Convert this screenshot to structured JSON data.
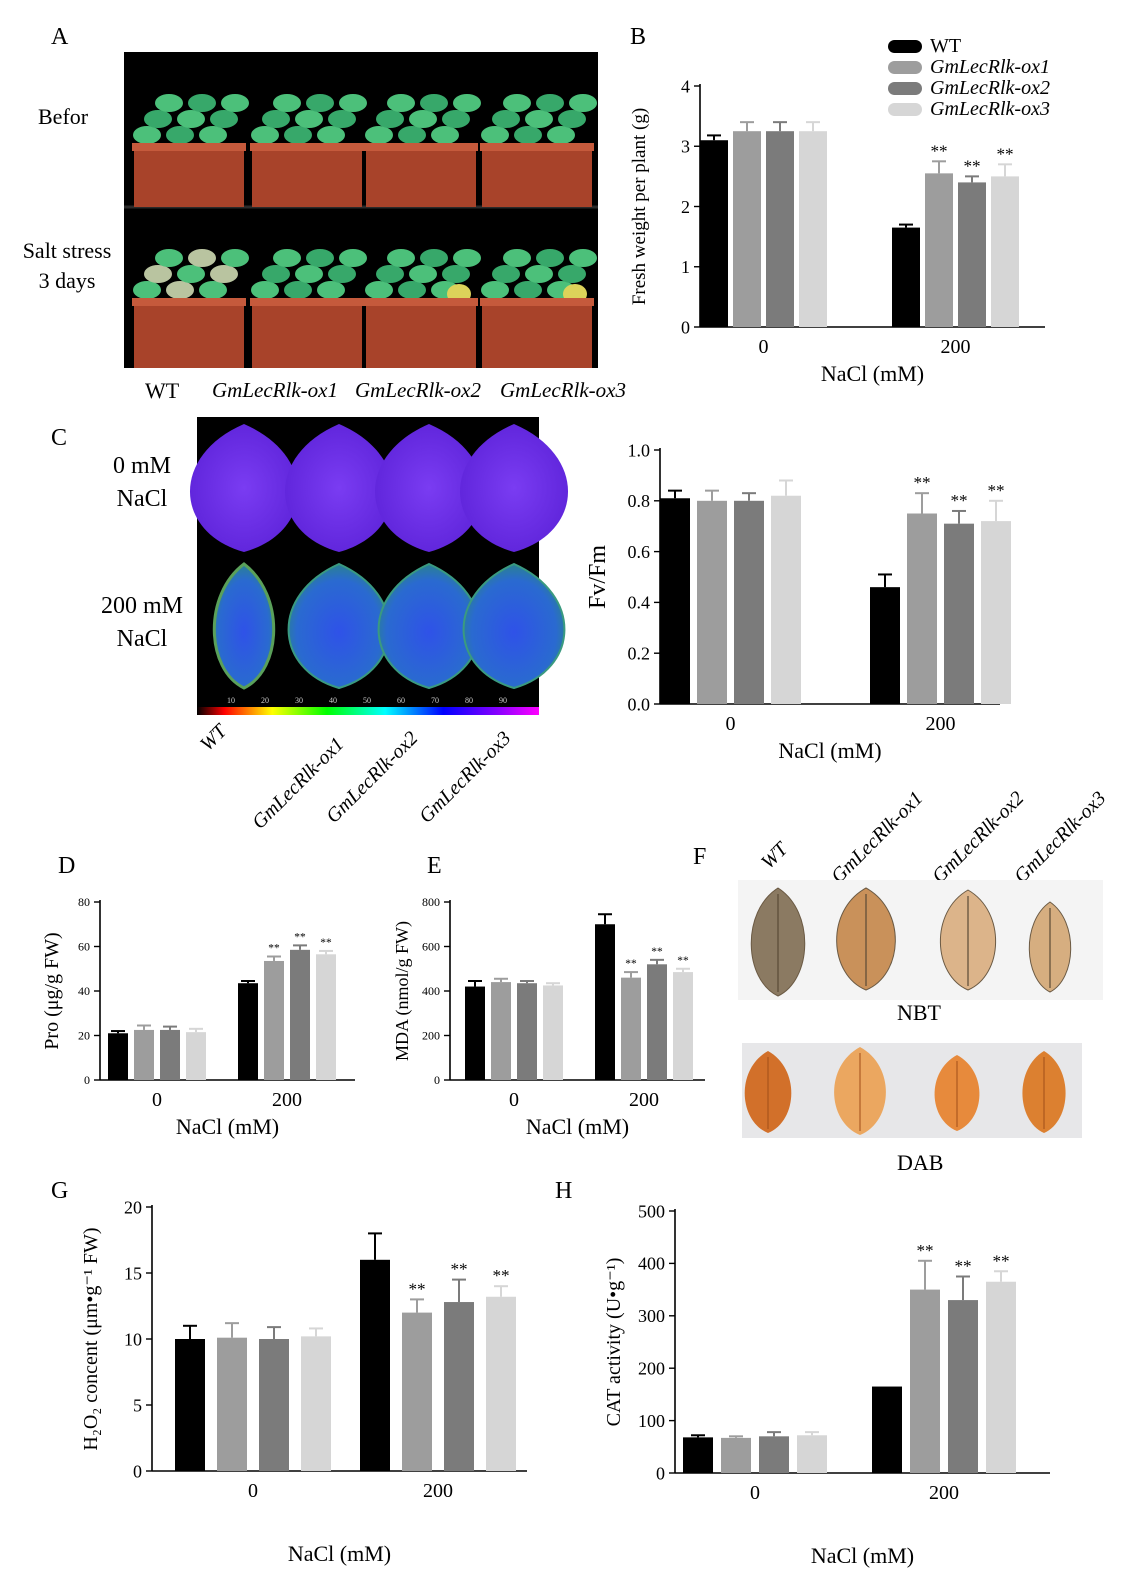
{
  "colors": {
    "WT": "#000000",
    "GmLecRlk-ox1": "#9d9d9d",
    "GmLecRlk-ox2": "#7b7b7b",
    "GmLecRlk-ox3": "#d6d6d6"
  },
  "legend": [
    "WT",
    "GmLecRlk-ox1",
    "GmLecRlk-ox2",
    "GmLecRlk-ox3"
  ],
  "panelA": {
    "letter": "A",
    "row_labels": [
      "Befor",
      "Salt stress\n3 days"
    ],
    "genotype_labels": [
      "WT",
      "GmLecRlk-ox1",
      "GmLecRlk-ox2",
      "GmLecRlk-ox3"
    ]
  },
  "panelC": {
    "letter": "C",
    "row_labels": [
      "0 mM\nNaCl",
      "200 mM\nNaCl"
    ],
    "genotype_labels": [
      "WT",
      "GmLecRlk-ox1",
      "GmLecRlk-ox2",
      "GmLecRlk-ox3"
    ],
    "scale_ticks": [
      "10",
      "20",
      "30",
      "40",
      "50",
      "60",
      "70",
      "80",
      "90"
    ]
  },
  "panelF": {
    "letter": "F",
    "genotype_labels": [
      "WT",
      "GmLecRlk-ox1",
      "GmLecRlk-ox2",
      "GmLecRlk-ox3"
    ],
    "stain_labels": [
      "NBT",
      "DAB"
    ]
  },
  "chart_data": [
    {
      "id": "B",
      "letter": "B",
      "type": "bar",
      "categories": [
        "0",
        "200"
      ],
      "xlabel": "NaCl (mM)",
      "ylabel": "Fresh weight per plant (g)",
      "ylim": [
        0,
        4
      ],
      "yticks": [
        0,
        1,
        2,
        3,
        4
      ],
      "series": [
        {
          "name": "WT",
          "values": [
            3.1,
            1.65
          ],
          "err": [
            0.08,
            0.05
          ],
          "sig": [
            "",
            ""
          ]
        },
        {
          "name": "GmLecRlk-ox1",
          "values": [
            3.25,
            2.55
          ],
          "err": [
            0.15,
            0.2
          ],
          "sig": [
            "",
            "**"
          ]
        },
        {
          "name": "GmLecRlk-ox2",
          "values": [
            3.25,
            2.4
          ],
          "err": [
            0.15,
            0.1
          ],
          "sig": [
            "",
            "**"
          ]
        },
        {
          "name": "GmLecRlk-ox3",
          "values": [
            3.25,
            2.5
          ],
          "err": [
            0.15,
            0.2
          ],
          "sig": [
            "",
            "**"
          ]
        }
      ]
    },
    {
      "id": "C",
      "letter": "",
      "type": "bar",
      "categories": [
        "0",
        "200"
      ],
      "xlabel": "NaCl (mM)",
      "ylabel": "Fv/Fm",
      "ylim": [
        0,
        1.0
      ],
      "yticks": [
        "0.0",
        "0.2",
        "0.4",
        "0.6",
        "0.8",
        "1.0"
      ],
      "series": [
        {
          "name": "WT",
          "values": [
            0.81,
            0.46
          ],
          "err": [
            0.03,
            0.05
          ],
          "sig": [
            "",
            ""
          ]
        },
        {
          "name": "GmLecRlk-ox1",
          "values": [
            0.8,
            0.75
          ],
          "err": [
            0.04,
            0.08
          ],
          "sig": [
            "",
            "**"
          ]
        },
        {
          "name": "GmLecRlk-ox2",
          "values": [
            0.8,
            0.71
          ],
          "err": [
            0.03,
            0.05
          ],
          "sig": [
            "",
            "**"
          ]
        },
        {
          "name": "GmLecRlk-ox3",
          "values": [
            0.82,
            0.72
          ],
          "err": [
            0.06,
            0.08
          ],
          "sig": [
            "",
            "**"
          ]
        }
      ]
    },
    {
      "id": "D",
      "letter": "D",
      "type": "bar",
      "categories": [
        "0",
        "200"
      ],
      "xlabel": "NaCl (mM)",
      "ylabel": "Pro (μg/g FW)",
      "ylim": [
        0,
        80
      ],
      "yticks": [
        0,
        20,
        40,
        60,
        80
      ],
      "series": [
        {
          "name": "WT",
          "values": [
            21,
            43.5
          ],
          "err": [
            1,
            1
          ],
          "sig": [
            "",
            ""
          ]
        },
        {
          "name": "GmLecRlk-ox1",
          "values": [
            22.5,
            53.5
          ],
          "err": [
            2,
            2
          ],
          "sig": [
            "",
            "**"
          ]
        },
        {
          "name": "GmLecRlk-ox2",
          "values": [
            22.5,
            58.5
          ],
          "err": [
            1.5,
            2
          ],
          "sig": [
            "",
            "**"
          ]
        },
        {
          "name": "GmLecRlk-ox3",
          "values": [
            21.5,
            56.5
          ],
          "err": [
            1.5,
            1.5
          ],
          "sig": [
            "",
            "**"
          ]
        }
      ]
    },
    {
      "id": "E",
      "letter": "E",
      "type": "bar",
      "categories": [
        "0",
        "200"
      ],
      "xlabel": "NaCl (mM)",
      "ylabel": "MDA (nmol/g FW)",
      "ylim": [
        0,
        800
      ],
      "yticks": [
        0,
        200,
        400,
        600,
        800
      ],
      "series": [
        {
          "name": "WT",
          "values": [
            420,
            700
          ],
          "err": [
            25,
            45
          ],
          "sig": [
            "",
            ""
          ]
        },
        {
          "name": "GmLecRlk-ox1",
          "values": [
            440,
            460
          ],
          "err": [
            15,
            25
          ],
          "sig": [
            "",
            "**"
          ]
        },
        {
          "name": "GmLecRlk-ox2",
          "values": [
            435,
            520
          ],
          "err": [
            10,
            20
          ],
          "sig": [
            "",
            "**"
          ]
        },
        {
          "name": "GmLecRlk-ox3",
          "values": [
            425,
            485
          ],
          "err": [
            10,
            15
          ],
          "sig": [
            "",
            "**"
          ]
        }
      ]
    },
    {
      "id": "G",
      "letter": "G",
      "type": "bar",
      "categories": [
        "0",
        "200"
      ],
      "xlabel": "NaCl (mM)",
      "ylabel": "H₂O₂ concent (μm•g⁻¹ FW)",
      "ylim": [
        0,
        20
      ],
      "yticks": [
        0,
        5,
        10,
        15,
        20
      ],
      "series": [
        {
          "name": "WT",
          "values": [
            10,
            16
          ],
          "err": [
            1,
            2
          ],
          "sig": [
            "",
            ""
          ]
        },
        {
          "name": "GmLecRlk-ox1",
          "values": [
            10.1,
            12
          ],
          "err": [
            1.1,
            1
          ],
          "sig": [
            "",
            "**"
          ]
        },
        {
          "name": "GmLecRlk-ox2",
          "values": [
            10,
            12.8
          ],
          "err": [
            0.9,
            1.7
          ],
          "sig": [
            "",
            "**"
          ]
        },
        {
          "name": "GmLecRlk-ox3",
          "values": [
            10.2,
            13.2
          ],
          "err": [
            0.6,
            0.8
          ],
          "sig": [
            "",
            "**"
          ]
        }
      ]
    },
    {
      "id": "H",
      "letter": "H",
      "type": "bar",
      "categories": [
        "0",
        "200"
      ],
      "xlabel": "NaCl (mM)",
      "ylabel": "CAT activity (U•g⁻¹)",
      "ylim": [
        0,
        500
      ],
      "yticks": [
        0,
        100,
        200,
        300,
        400,
        500
      ],
      "series": [
        {
          "name": "WT",
          "values": [
            68,
            165
          ],
          "err": [
            4,
            0
          ],
          "sig": [
            "",
            ""
          ]
        },
        {
          "name": "GmLecRlk-ox1",
          "values": [
            67,
            350
          ],
          "err": [
            3,
            55
          ],
          "sig": [
            "",
            "**"
          ]
        },
        {
          "name": "GmLecRlk-ox2",
          "values": [
            70,
            330
          ],
          "err": [
            8,
            45
          ],
          "sig": [
            "",
            "**"
          ]
        },
        {
          "name": "GmLecRlk-ox3",
          "values": [
            72,
            365
          ],
          "err": [
            6,
            20
          ],
          "sig": [
            "",
            "**"
          ]
        }
      ]
    }
  ]
}
